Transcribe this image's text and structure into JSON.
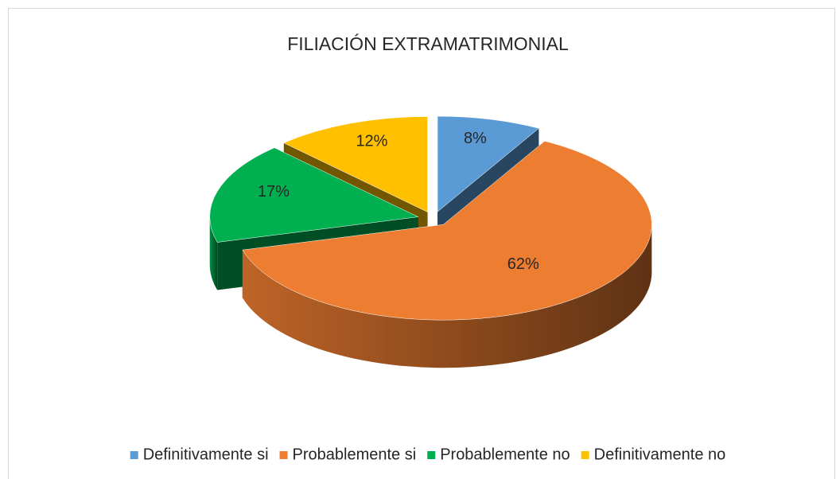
{
  "chart_data": {
    "type": "pie",
    "title": "FILIACIÓN EXTRAMATRIMONIAL",
    "categories": [
      "Definitivamente si",
      "Probablemente si",
      "Probablemente no",
      "Definitivamente no"
    ],
    "values": [
      8,
      62,
      17,
      12
    ],
    "value_labels": [
      "8%",
      "62%",
      "17%",
      "12%"
    ],
    "colors": [
      "#5b9bd5",
      "#ed7d31",
      "#00b050",
      "#ffc000"
    ],
    "legend": "bottom"
  }
}
